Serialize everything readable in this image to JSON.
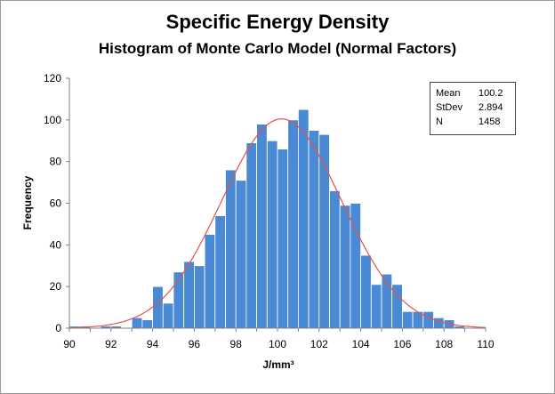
{
  "chart_data": {
    "type": "bar",
    "title": "Specific Energy Density",
    "subtitle": "Histogram of Monte Carlo Model (Normal Factors)",
    "xlabel": "J/mm³",
    "ylabel": "Frequency",
    "xlim": [
      90,
      110
    ],
    "ylim": [
      0,
      120
    ],
    "xticks": [
      "90",
      "92",
      "94",
      "96",
      "98",
      "100",
      "102",
      "104",
      "106",
      "108",
      "110"
    ],
    "yticks": [
      "0",
      "20",
      "40",
      "60",
      "80",
      "100",
      "120"
    ],
    "bin_width": 0.5,
    "x": [
      90.0,
      90.5,
      91.0,
      91.5,
      92.0,
      92.5,
      93.0,
      93.5,
      94.0,
      94.5,
      95.0,
      95.5,
      96.0,
      96.5,
      97.0,
      97.5,
      98.0,
      98.5,
      99.0,
      99.5,
      100.0,
      100.5,
      101.0,
      101.5,
      102.0,
      102.5,
      103.0,
      103.5,
      104.0,
      104.5,
      105.0,
      105.5,
      106.0,
      106.5,
      107.0,
      107.5,
      108.0,
      108.5
    ],
    "values": [
      1,
      1,
      0,
      1,
      1,
      0,
      5,
      4,
      20,
      12,
      27,
      32,
      30,
      45,
      54,
      76,
      71,
      89,
      98,
      90,
      86,
      100,
      105,
      95,
      93,
      66,
      59,
      60,
      35,
      21,
      26,
      21,
      8,
      8,
      8,
      5,
      4,
      1
    ],
    "fit_curve": {
      "type": "normal",
      "mean": 100.2,
      "stdev": 2.894,
      "n": 1458
    },
    "stats": [
      {
        "label": "Mean",
        "value": "100.2"
      },
      {
        "label": "StDev",
        "value": "2.894"
      },
      {
        "label": "N",
        "value": "1458"
      }
    ],
    "grid": false,
    "colors": {
      "bars": "#4a89d3",
      "bar_edge": "#ffffff",
      "curve": "#e8524a",
      "axis": "#808080"
    }
  }
}
